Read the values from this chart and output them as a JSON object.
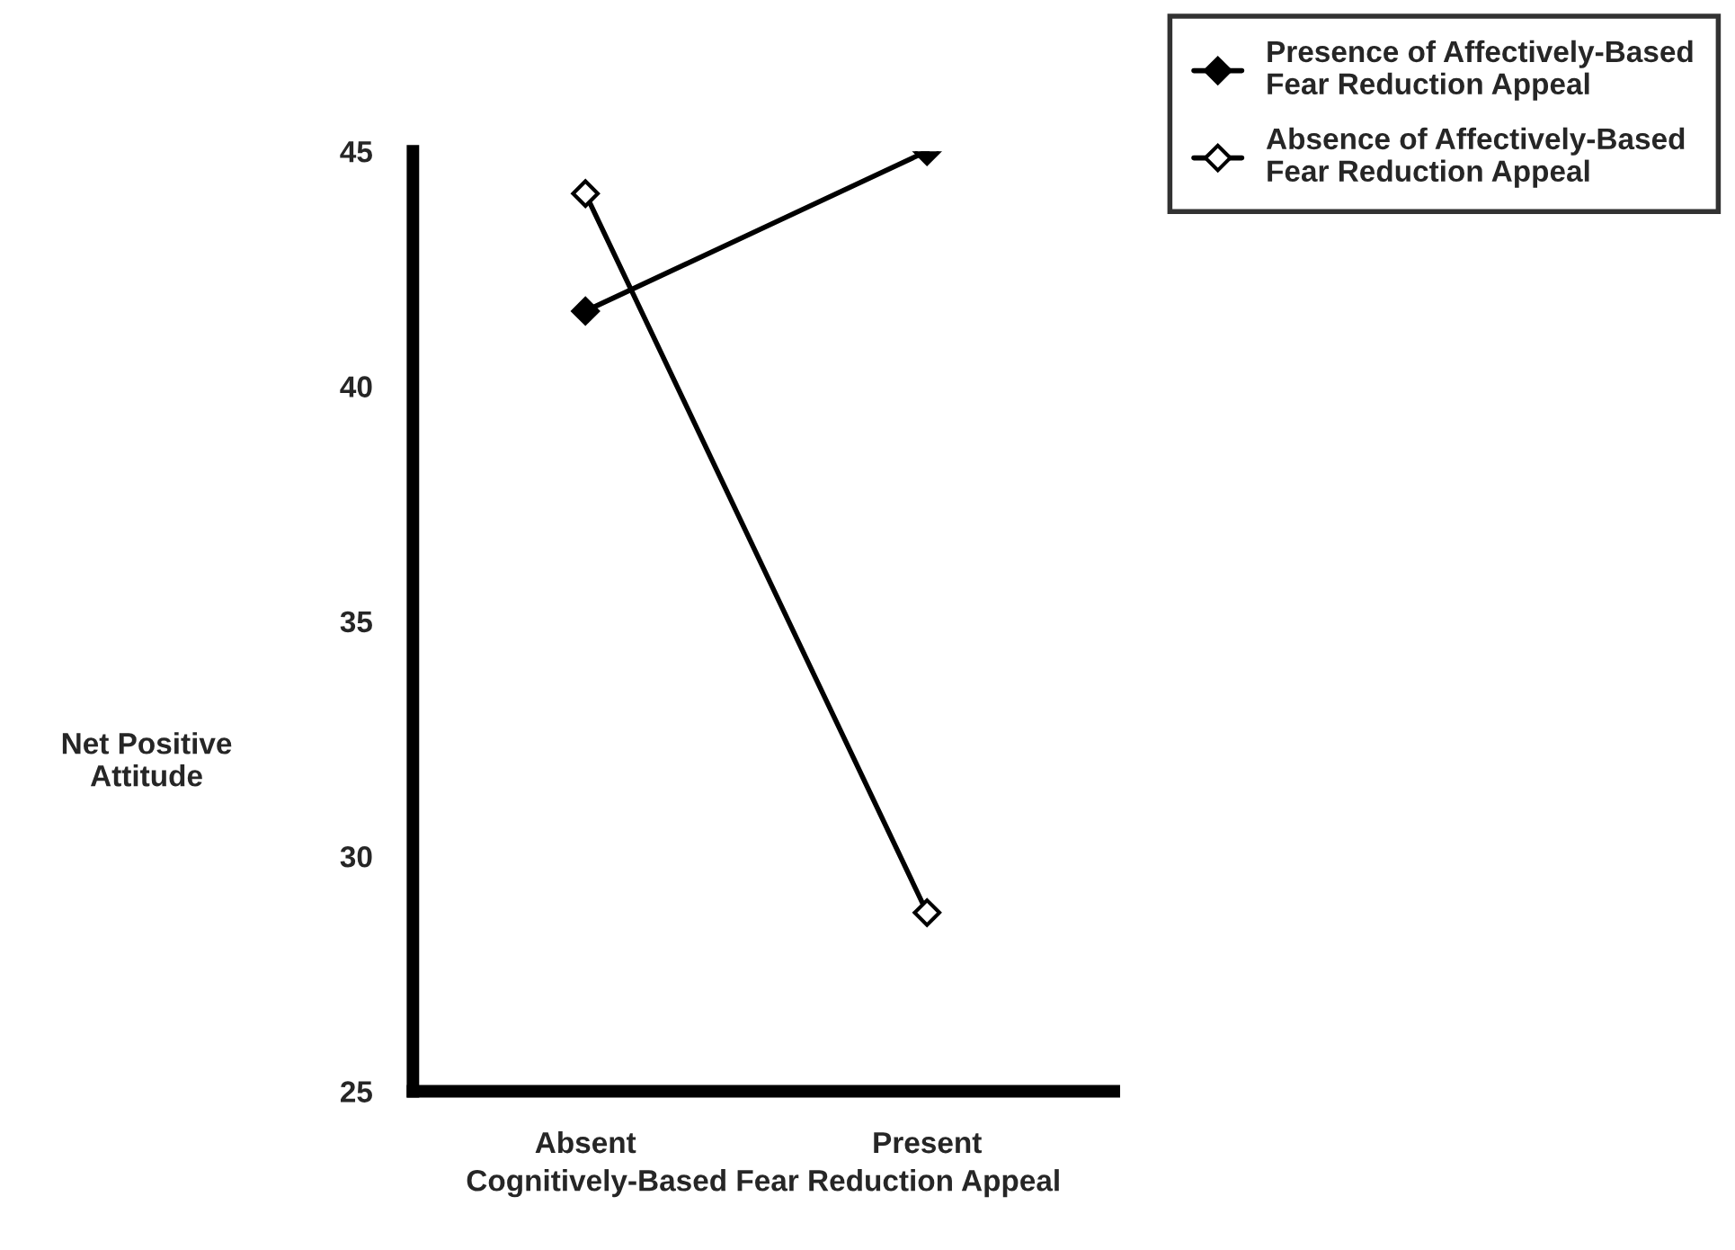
{
  "chart_data": {
    "type": "line",
    "xlabel": "Cognitively-Based Fear Reduction Appeal",
    "ylabel": "Net Positive\nAttitude",
    "categories": [
      "Absent",
      "Present"
    ],
    "series": [
      {
        "name": "Presence of Affectively-Based\nFear Reduction Appeal",
        "color": "#000000",
        "values": [
          41.6,
          45.0
        ]
      },
      {
        "name": "Absence of Affectively-Based\nFear Reduction Appeal",
        "color": "#000000",
        "values": [
          44.1,
          28.8
        ]
      }
    ],
    "ylim": [
      25,
      45
    ],
    "yticks": [
      25,
      30,
      35,
      40,
      45
    ],
    "marker": "diamond",
    "line_style": "solid",
    "grid": false,
    "legend": "top right"
  }
}
